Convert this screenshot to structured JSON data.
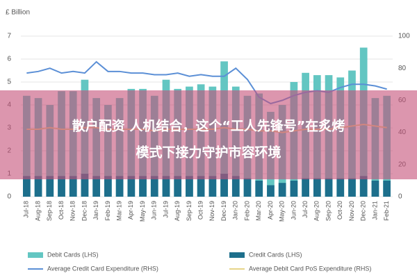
{
  "chart_data": {
    "type": "bar",
    "y_label": "£ Billion",
    "categories": [
      "Jul-18",
      "Aug-18",
      "Sep-18",
      "Oct-18",
      "Nov-18",
      "Dec-18",
      "Jan-19",
      "Feb-19",
      "Mar-19",
      "Apr-19",
      "May-19",
      "Jun-19",
      "Jul-19",
      "Aug-19",
      "Sep-19",
      "Oct-19",
      "Nov-19",
      "Dec-19",
      "Jan-20",
      "Feb-20",
      "Mar-20",
      "Apr-20",
      "May-20",
      "Jun-20",
      "Jul-20",
      "Aug-20",
      "Sep-20",
      "Oct-20",
      "Nov-20",
      "Dec-20",
      "Jan-21",
      "Feb-21"
    ],
    "series": [
      {
        "name": "Debit Cards (LHS)",
        "type": "bar",
        "color": "#63c6c2",
        "values": [
          4.4,
          4.3,
          4.0,
          4.6,
          4.6,
          5.1,
          4.3,
          4.0,
          4.3,
          4.7,
          4.7,
          4.4,
          5.1,
          4.7,
          4.8,
          4.9,
          4.8,
          5.9,
          4.8,
          4.4,
          4.5,
          3.7,
          4.0,
          5.0,
          5.4,
          5.3,
          5.3,
          5.2,
          5.5,
          6.5,
          4.3,
          4.4
        ]
      },
      {
        "name": "Credit Cards (LHS)",
        "type": "bar",
        "color": "#1d6f8c",
        "values": [
          0.9,
          0.9,
          0.9,
          0.9,
          0.9,
          1.0,
          0.9,
          0.9,
          0.9,
          0.9,
          0.9,
          0.9,
          0.9,
          0.9,
          0.9,
          0.9,
          0.9,
          1.0,
          0.9,
          0.8,
          0.7,
          0.5,
          0.6,
          0.7,
          0.8,
          0.8,
          0.8,
          0.8,
          0.8,
          0.9,
          0.7,
          0.7
        ]
      },
      {
        "name": "Average Credit Card Expenditure (RHS)",
        "type": "line",
        "axis": "y2",
        "color": "#5b8fd6",
        "values": [
          77,
          78,
          80,
          77,
          78,
          77,
          84,
          78,
          78,
          77,
          77,
          76,
          76,
          77,
          75,
          76,
          75,
          75,
          80,
          73,
          62,
          58,
          60,
          63,
          65,
          66,
          65,
          68,
          70,
          70,
          69,
          67
        ]
      },
      {
        "name": "Average Debit Card PoS Expenditure (RHS)",
        "type": "line",
        "axis": "y2",
        "color": "#e6d489",
        "values": [
          42,
          42,
          43,
          42,
          42,
          43,
          43,
          42,
          42,
          42,
          42,
          41,
          42,
          42,
          42,
          42,
          42,
          43,
          42,
          42,
          41,
          41,
          40,
          41,
          42,
          42,
          42,
          43,
          44,
          45,
          44,
          43
        ]
      }
    ],
    "ylim": [
      0,
      7
    ],
    "yticks": [
      0,
      1,
      2,
      3,
      4,
      5,
      6,
      7
    ],
    "y2lim": [
      0,
      100
    ],
    "y2ticks": [
      0,
      20,
      40,
      60,
      80,
      100
    ],
    "grid": true
  },
  "overlay": {
    "lines": [
      "散户配资 人机结合，这个“工人先锋号”在炙烤",
      "模式下接力守护市容环境"
    ]
  }
}
